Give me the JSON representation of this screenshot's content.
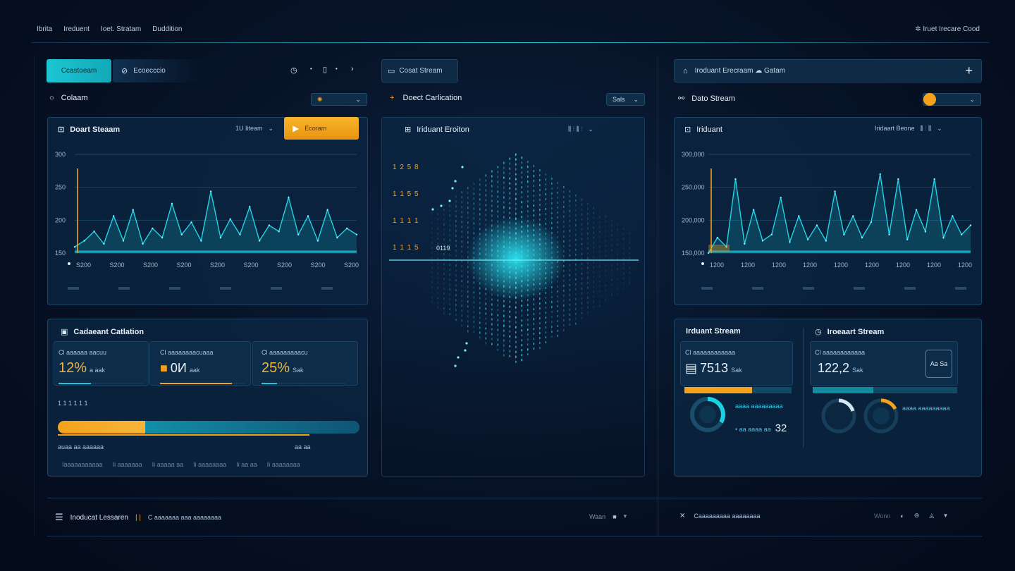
{
  "topnav": {
    "items": [
      "Ibrita",
      "Ireduent",
      "Ioet. Stratam",
      "Duddition"
    ],
    "right_label": "Iruet Irecare Cood"
  },
  "left": {
    "btn_dashboard": "Ccastoeam",
    "btn_secondary": "Ecoecccio",
    "section_label": "Colaam",
    "chart1": {
      "title": "Doart Steaam",
      "select_label": "1U Iiteam",
      "play_label": "Ecoram"
    },
    "calc_panel": {
      "title": "Cadaeant Catlation",
      "stats": [
        {
          "label": "Cl aaaaaa aacuu",
          "value": "12%",
          "unit": "a aak"
        },
        {
          "label": "Cl aaaaaaaacuaaa",
          "value": "0И",
          "unit": "aak"
        },
        {
          "label": "Cl aaaaaaaaacu",
          "value": "25%",
          "unit": "Sak"
        }
      ],
      "sub_label": "1 1 1 1 1 1",
      "range_left": "auaa aa aaaaaa",
      "range_right": "aa aa",
      "footer_items": [
        "Iaaaaaaaaaaa",
        "Ii aaaaaaa",
        "Ii aaaaa aa",
        "Ii aaaaaaaa",
        "Ii aa aa",
        "Ii aaaaaaaa"
      ]
    }
  },
  "center": {
    "btn_label": "Cosat Stream",
    "section_label": "Doect Carlication",
    "select_label": "Sals",
    "panel_title": "Iriduant Eroiton",
    "rows": [
      {
        "label": "1 2 5 8"
      },
      {
        "label": "1 1 5 5"
      },
      {
        "label": "1 1 1 1"
      },
      {
        "label": "1 1 1 5"
      }
    ],
    "marker_label": "0119"
  },
  "right": {
    "header": "Iroduant Erecraam ☁ Gatam",
    "section_label": "Dato Stream",
    "chart": {
      "title": "Iriduant",
      "select_label": "Iridaart Beone"
    },
    "stream_panel": {
      "title_left": "Irduant Stream",
      "title_right": "Iroeaart Stream",
      "stat_left": {
        "label": "Cl aaaaaaaaaaaa",
        "value": "7513",
        "unit": "Sak"
      },
      "stat_right": {
        "label": "Cl aaaaaaaaaaaa",
        "value": "122,2",
        "unit": "Sak"
      },
      "box_label": "Aa Sa",
      "gauge_text": "aaaa aaaaaaaaa",
      "gauge_value": "32"
    }
  },
  "footer": {
    "left_label": "Inoducat Lessaren",
    "left_sub": "C aaaaaaa aaa aaaaaaaa",
    "center_right_label": "Waan",
    "right_label": "Caaaaaaaaa aaaaaaaa",
    "right_tail": "Wonn"
  },
  "chart_data": [
    {
      "type": "line",
      "title": "Doart Steaam",
      "x_tick_labels": [
        "S200",
        "S200",
        "S200",
        "S200",
        "S200",
        "S200",
        "S200",
        "S200",
        "S200"
      ],
      "y_tick_labels": [
        "300",
        "250",
        "200",
        "150"
      ],
      "series": [
        {
          "values": [
            150,
            160,
            175,
            155,
            200,
            160,
            210,
            155,
            180,
            165,
            220,
            170,
            190,
            160,
            240,
            165,
            195,
            170,
            215,
            160,
            185,
            175,
            230,
            170,
            200,
            160,
            210,
            165,
            180,
            170
          ]
        }
      ]
    },
    {
      "type": "line",
      "title": "Iriduant",
      "x_tick_labels": [
        "1200",
        "1200",
        "1200",
        "1200",
        "1200",
        "1200",
        "1200",
        "1200",
        "1200"
      ],
      "y_tick_labels": [
        "300,000",
        "250,000",
        "200,000",
        "150,000"
      ],
      "series": [
        {
          "values": [
            140,
            165,
            150,
            260,
            155,
            210,
            160,
            170,
            230,
            158,
            200,
            162,
            185,
            160,
            240,
            170,
            200,
            165,
            190,
            268,
            170,
            260,
            162,
            210,
            175,
            260,
            165,
            200,
            170,
            185
          ]
        }
      ]
    }
  ]
}
